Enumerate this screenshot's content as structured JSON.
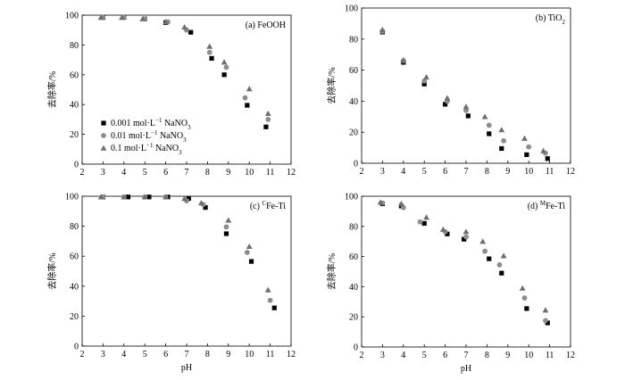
{
  "figure": {
    "legend": {
      "placement": "lower-left of panel (a)",
      "entries": [
        {
          "series": 0,
          "marker": "square",
          "color": "#000000",
          "text": "0.001 mol·L",
          "sup": "−1",
          "tail": " NaNO",
          "sub": "3"
        },
        {
          "series": 1,
          "marker": "circle",
          "color": "#8c8c8c",
          "text": "0.01 mol·L",
          "sup": "−1",
          "tail": " NaNO",
          "sub": "3"
        },
        {
          "series": 2,
          "marker": "triangle",
          "color": "#6e6e6e",
          "text": "0.1 mol·L",
          "sup": "−1",
          "tail": " NaNO",
          "sub": "3"
        }
      ]
    }
  },
  "chart_data": [
    {
      "type": "scatter",
      "panel_label": {
        "pre": "(a) FeOOH",
        "sup": "",
        "post": "",
        "sub": ""
      },
      "xlabel": "",
      "ylabel": "去除率/%",
      "xlim": [
        2,
        12
      ],
      "ylim": [
        0,
        100
      ],
      "xticks": [
        2,
        3,
        4,
        5,
        6,
        7,
        8,
        9,
        10,
        11,
        12
      ],
      "yticks": [
        0,
        20,
        40,
        60,
        80,
        100
      ],
      "grid": false,
      "series": [
        {
          "name": "0.001 mol·L−1 NaNO3",
          "marker": "square",
          "color": "#000000",
          "x": [
            3.0,
            4.0,
            5.0,
            6.0,
            7.2,
            8.2,
            8.8,
            9.9,
            10.8
          ],
          "y": [
            98.5,
            98.5,
            97.5,
            95.0,
            88.5,
            71.0,
            60.0,
            39.5,
            25.0
          ]
        },
        {
          "name": "0.01 mol·L−1 NaNO3",
          "marker": "circle",
          "color": "#8c8c8c",
          "x": [
            3.0,
            4.0,
            5.0,
            6.1,
            7.0,
            8.1,
            8.9,
            9.8,
            10.9
          ],
          "y": [
            98.5,
            98.5,
            97.5,
            95.5,
            90.0,
            75.0,
            65.0,
            44.5,
            30.0
          ]
        },
        {
          "name": "0.1 mol·L−1 NaNO3",
          "marker": "triangle",
          "color": "#6e6e6e",
          "x": [
            2.9,
            3.9,
            4.9,
            6.0,
            6.9,
            8.1,
            8.8,
            10.0,
            10.9
          ],
          "y": [
            98.5,
            98.5,
            97.5,
            95.5,
            92.0,
            79.0,
            68.5,
            50.5,
            34.0
          ]
        }
      ]
    },
    {
      "type": "scatter",
      "panel_label": {
        "pre": "(b) TiO",
        "sup": "",
        "post": "",
        "sub": "2"
      },
      "xlabel": "",
      "ylabel": "去除率/%",
      "xlim": [
        2,
        12
      ],
      "ylim": [
        0,
        100
      ],
      "xticks": [
        2,
        3,
        4,
        5,
        6,
        7,
        8,
        9,
        10,
        11,
        12
      ],
      "yticks": [
        0,
        20,
        40,
        60,
        80,
        100
      ],
      "grid": false,
      "series": [
        {
          "name": "0.001 mol·L−1 NaNO3",
          "marker": "square",
          "color": "#000000",
          "x": [
            3.0,
            4.0,
            5.0,
            6.0,
            7.1,
            8.1,
            8.7,
            9.9,
            10.9
          ],
          "y": [
            84.5,
            65.0,
            51.0,
            38.0,
            30.5,
            19.0,
            9.5,
            5.5,
            3.0
          ]
        },
        {
          "name": "0.01 mol·L−1 NaNO3",
          "marker": "circle",
          "color": "#8c8c8c",
          "x": [
            3.0,
            4.0,
            5.0,
            6.1,
            7.0,
            8.1,
            8.8,
            10.0,
            10.8
          ],
          "y": [
            85.0,
            66.0,
            53.0,
            40.0,
            34.0,
            24.5,
            14.5,
            10.5,
            6.5
          ]
        },
        {
          "name": "0.1 mol·L−1 NaNO3",
          "marker": "triangle",
          "color": "#6e6e6e",
          "x": [
            3.0,
            4.0,
            5.1,
            6.1,
            7.0,
            7.9,
            8.7,
            9.8,
            10.7
          ],
          "y": [
            86.0,
            66.5,
            55.5,
            42.0,
            36.5,
            30.0,
            21.5,
            16.0,
            8.0
          ]
        }
      ]
    },
    {
      "type": "scatter",
      "panel_label": {
        "pre": "(c) ",
        "sup": "C",
        "post": "Fe-Ti",
        "sub": ""
      },
      "xlabel": "pH",
      "ylabel": "去除率/%",
      "xlim": [
        2,
        12
      ],
      "ylim": [
        0,
        100
      ],
      "xticks": [
        2,
        3,
        4,
        5,
        6,
        7,
        8,
        9,
        10,
        11,
        12
      ],
      "yticks": [
        0,
        20,
        40,
        60,
        80,
        100
      ],
      "grid": false,
      "series": [
        {
          "name": "0.001 mol·L−1 NaNO3",
          "marker": "square",
          "color": "#000000",
          "x": [
            3.0,
            4.2,
            5.2,
            6.1,
            7.1,
            7.9,
            8.9,
            10.1,
            11.2
          ],
          "y": [
            99.5,
            99.5,
            99.5,
            99.5,
            98.5,
            92.5,
            75.0,
            56.5,
            25.5
          ]
        },
        {
          "name": "0.01 mol·L−1 NaNO3",
          "marker": "circle",
          "color": "#8c8c8c",
          "x": [
            3.0,
            4.0,
            5.0,
            6.0,
            7.0,
            7.8,
            8.9,
            9.9,
            11.0
          ],
          "y": [
            99.5,
            99.5,
            99.5,
            99.5,
            97.0,
            94.5,
            79.5,
            62.5,
            30.5
          ]
        },
        {
          "name": "0.1 mol·L−1 NaNO3",
          "marker": "triangle",
          "color": "#6e6e6e",
          "x": [
            2.9,
            4.0,
            5.0,
            6.0,
            6.9,
            7.7,
            9.0,
            10.0,
            10.9
          ],
          "y": [
            99.5,
            99.5,
            99.5,
            99.5,
            98.5,
            95.5,
            84.0,
            66.5,
            37.5
          ]
        }
      ]
    },
    {
      "type": "scatter",
      "panel_label": {
        "pre": "(d) ",
        "sup": "M",
        "post": "Fe-Ti",
        "sub": ""
      },
      "xlabel": "pH",
      "ylabel": "去除率/%",
      "xlim": [
        2,
        12
      ],
      "ylim": [
        0,
        100
      ],
      "xticks": [
        2,
        3,
        4,
        5,
        6,
        7,
        8,
        9,
        10,
        11,
        12
      ],
      "yticks": [
        0,
        20,
        40,
        60,
        80,
        100
      ],
      "grid": false,
      "series": [
        {
          "name": "0.001 mol·L−1 NaNO3",
          "marker": "square",
          "color": "#000000",
          "x": [
            3.0,
            3.9,
            5.0,
            6.1,
            6.9,
            8.1,
            8.7,
            9.9,
            10.9
          ],
          "y": [
            95.0,
            93.5,
            82.0,
            75.0,
            71.5,
            58.5,
            49.0,
            25.5,
            16.0
          ]
        },
        {
          "name": "0.01 mol·L−1 NaNO3",
          "marker": "circle",
          "color": "#8c8c8c",
          "x": [
            3.0,
            4.0,
            4.8,
            6.0,
            7.0,
            7.9,
            8.6,
            9.8,
            10.8
          ],
          "y": [
            95.5,
            92.5,
            83.0,
            76.5,
            73.0,
            63.5,
            54.5,
            32.5,
            17.5
          ]
        },
        {
          "name": "0.1 mol·L−1 NaNO3",
          "marker": "triangle",
          "color": "#6e6e6e",
          "x": [
            2.9,
            3.9,
            5.1,
            5.9,
            7.0,
            7.8,
            8.8,
            9.7,
            10.8
          ],
          "y": [
            96.0,
            95.0,
            86.0,
            78.0,
            76.5,
            70.0,
            60.5,
            39.0,
            24.5
          ]
        }
      ]
    }
  ]
}
